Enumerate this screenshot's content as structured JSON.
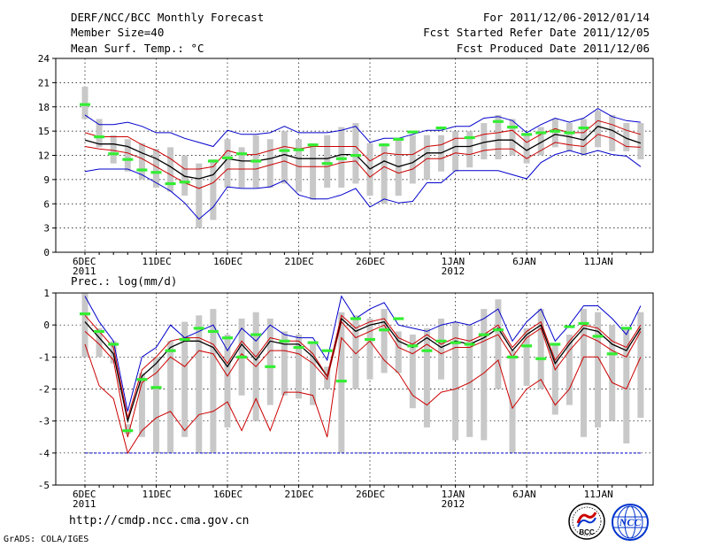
{
  "header": {
    "title": "DERF/NCC/BCC Monthly Forecast",
    "member_size": "Member Size=40",
    "variable": "Mean Surf. Temp.: °C",
    "period": "For 2011/12/06-2012/01/14",
    "fcst_started": "Fcst Started Refer Date 2011/12/05",
    "fcst_produced": "Fcst Produced Date 2011/12/06"
  },
  "footer": {
    "url": "http://cmdp.ncc.cma.gov.cn",
    "credit": "GrADS: COLA/IGES",
    "logo_left_text": "BCC",
    "logo_right_text": "NCC"
  },
  "colors": {
    "envelope": "#0000cc",
    "inner_band": "#cc0000",
    "mean": "#000000",
    "box": "#c8c8c8",
    "obs": "#33ee33",
    "floor": "#0000cc"
  },
  "chart_data": [
    {
      "type": "line",
      "title": "Mean Surf. Temp.: °C",
      "ylim": [
        0,
        24
      ],
      "yticks": [
        0,
        3,
        6,
        9,
        12,
        15,
        18,
        21,
        24
      ],
      "xticks": [
        {
          "day": 1,
          "label": "6DEC",
          "sub": "2011"
        },
        {
          "day": 6,
          "label": "11DEC"
        },
        {
          "day": 11,
          "label": "16DEC"
        },
        {
          "day": 16,
          "label": "21DEC"
        },
        {
          "day": 21,
          "label": "26DEC"
        },
        {
          "day": 27,
          "label": "1JAN",
          "sub": "2012"
        },
        {
          "day": 32,
          "label": "6JAN"
        },
        {
          "day": 37,
          "label": "11JAN"
        }
      ],
      "x": [
        1,
        2,
        3,
        4,
        5,
        6,
        7,
        8,
        9,
        10,
        11,
        12,
        13,
        14,
        15,
        16,
        17,
        18,
        19,
        20,
        21,
        22,
        23,
        24,
        25,
        26,
        27,
        28,
        29,
        30,
        31,
        32,
        33,
        34,
        35,
        36,
        37,
        38,
        39,
        40
      ],
      "series": [
        {
          "name": "max",
          "color": "#0000cc",
          "values": [
            10.0,
            10.3,
            10.3,
            10.3,
            9.6,
            8.6,
            7.6,
            6.1,
            4.1,
            5.6,
            8.1,
            7.9,
            7.9,
            8.1,
            8.9,
            7.1,
            6.6,
            6.6,
            7.1,
            7.9,
            5.6,
            6.6,
            6.1,
            6.3,
            8.6,
            8.6,
            10.1,
            10.1,
            10.1,
            10.1,
            9.6,
            9.1,
            11.1,
            12.1,
            12.6,
            12.1,
            12.6,
            12.1,
            11.9,
            10.6
          ]
        },
        {
          "name": "p_low",
          "color": "#cc0000",
          "values": [
            13.1,
            12.8,
            12.6,
            12.3,
            11.6,
            10.6,
            9.6,
            8.6,
            7.9,
            8.6,
            10.3,
            10.3,
            10.3,
            10.8,
            11.3,
            10.6,
            10.6,
            10.6,
            11.1,
            11.3,
            9.3,
            10.6,
            9.8,
            10.3,
            11.6,
            11.6,
            12.3,
            12.1,
            12.6,
            12.8,
            12.8,
            11.6,
            12.6,
            13.6,
            13.3,
            13.1,
            14.6,
            14.1,
            13.1,
            13.0
          ]
        },
        {
          "name": "mean",
          "color": "#000000",
          "values": [
            13.9,
            13.4,
            13.4,
            13.1,
            12.3,
            11.6,
            10.6,
            9.4,
            9.1,
            9.6,
            11.6,
            11.3,
            11.3,
            11.6,
            12.1,
            11.6,
            11.6,
            11.6,
            12.1,
            12.1,
            10.3,
            11.3,
            10.6,
            11.1,
            12.3,
            12.3,
            13.1,
            13.1,
            13.6,
            13.9,
            13.9,
            12.6,
            13.6,
            14.6,
            14.3,
            13.9,
            15.6,
            15.1,
            14.1,
            13.5
          ]
        },
        {
          "name": "p_high",
          "color": "#cc0000",
          "values": [
            14.8,
            14.3,
            14.3,
            14.3,
            13.3,
            12.6,
            11.6,
            10.3,
            10.3,
            10.6,
            12.6,
            12.1,
            12.1,
            12.6,
            13.1,
            12.8,
            13.1,
            13.1,
            13.1,
            13.1,
            11.3,
            12.3,
            12.1,
            12.1,
            13.1,
            13.3,
            14.1,
            14.1,
            14.6,
            14.8,
            15.1,
            13.6,
            14.6,
            15.3,
            14.8,
            14.8,
            16.3,
            15.8,
            15.1,
            14.6
          ]
        },
        {
          "name": "min",
          "color": "#0000cc",
          "values": [
            17.0,
            15.8,
            15.8,
            16.1,
            15.6,
            14.8,
            14.8,
            14.1,
            13.6,
            13.1,
            15.1,
            14.6,
            14.6,
            14.8,
            15.6,
            14.8,
            14.8,
            14.8,
            15.1,
            15.6,
            13.6,
            14.1,
            14.1,
            14.6,
            15.1,
            15.1,
            15.6,
            15.6,
            16.6,
            16.8,
            16.3,
            14.8,
            15.8,
            16.6,
            16.1,
            16.6,
            17.8,
            16.8,
            16.3,
            16.1
          ]
        }
      ],
      "boxes": [
        [
          16.5,
          20.5
        ],
        [
          13,
          16.5
        ],
        [
          11,
          14.5
        ],
        [
          10,
          14
        ],
        [
          9,
          13.5
        ],
        [
          8,
          12.8
        ],
        [
          7.5,
          13
        ],
        [
          7,
          12
        ],
        [
          3,
          11
        ],
        [
          4,
          11.5
        ],
        [
          8,
          14
        ],
        [
          8,
          13
        ],
        [
          8,
          14.5
        ],
        [
          8,
          14
        ],
        [
          8.5,
          15
        ],
        [
          7.5,
          14
        ],
        [
          6.5,
          13.5
        ],
        [
          8,
          14.5
        ],
        [
          8,
          15.5
        ],
        [
          8.5,
          16
        ],
        [
          7,
          13.5
        ],
        [
          6,
          13.5
        ],
        [
          7,
          14
        ],
        [
          8.5,
          14.5
        ],
        [
          9,
          14.5
        ],
        [
          10,
          14.5
        ],
        [
          10,
          15
        ],
        [
          10.5,
          15
        ],
        [
          11.5,
          16
        ],
        [
          11.5,
          17
        ],
        [
          12,
          16.5
        ],
        [
          11,
          14.5
        ],
        [
          12,
          15.5
        ],
        [
          13,
          16.5
        ],
        [
          12.5,
          16
        ],
        [
          12,
          16.5
        ],
        [
          13,
          17.5
        ],
        [
          12.5,
          17
        ],
        [
          12.5,
          16
        ],
        [
          11.5,
          16
        ]
      ],
      "obs": [
        18.3,
        14.3,
        12.2,
        11.5,
        10.2,
        9.9,
        8.5,
        8.7,
        null,
        11.3,
        11.7,
        12.2,
        11.3,
        null,
        12.6,
        12.7,
        13.3,
        11.0,
        11.6,
        12.0,
        null,
        13.3,
        14.0,
        14.9,
        null,
        15.4,
        null,
        14.2,
        null,
        16.2,
        15.5,
        14.6,
        14.8,
        15.0,
        14.8,
        15.4,
        null,
        null,
        null,
        null
      ]
    },
    {
      "type": "line",
      "title": "Prec.: log(mm/d)",
      "ylim": [
        -5,
        1
      ],
      "yticks": [
        -5,
        -4,
        -3,
        -2,
        -1,
        0,
        1
      ],
      "floor": -4,
      "xticks": [
        {
          "day": 1,
          "label": "6DEC",
          "sub": "2011"
        },
        {
          "day": 6,
          "label": "11DEC"
        },
        {
          "day": 11,
          "label": "16DEC"
        },
        {
          "day": 16,
          "label": "21DEC"
        },
        {
          "day": 21,
          "label": "26DEC"
        },
        {
          "day": 27,
          "label": "1JAN",
          "sub": "2012"
        },
        {
          "day": 32,
          "label": "6JAN"
        },
        {
          "day": 37,
          "label": "11JAN"
        }
      ],
      "x": [
        1,
        2,
        3,
        4,
        5,
        6,
        7,
        8,
        9,
        10,
        11,
        12,
        13,
        14,
        15,
        16,
        17,
        18,
        19,
        20,
        21,
        22,
        23,
        24,
        25,
        26,
        27,
        28,
        29,
        30,
        31,
        32,
        33,
        34,
        35,
        36,
        37,
        38,
        39,
        40
      ],
      "series": [
        {
          "name": "min",
          "color": "#cc0000",
          "values": [
            -0.6,
            -1.9,
            -2.3,
            -4.0,
            -3.3,
            -2.9,
            -2.7,
            -3.3,
            -2.8,
            -2.7,
            -2.4,
            -3.3,
            -2.3,
            -3.3,
            -2.1,
            -2.1,
            -2.2,
            -3.5,
            -0.4,
            -0.9,
            -0.5,
            -1.1,
            -1.5,
            -2.2,
            -2.5,
            -2.1,
            -2.0,
            -1.8,
            -1.5,
            -1.1,
            -2.6,
            -2.0,
            -1.7,
            -2.5,
            -2.0,
            -1.0,
            -1.0,
            -1.8,
            -2.0,
            -1.0
          ]
        },
        {
          "name": "p_low",
          "color": "#cc0000",
          "values": [
            -0.2,
            -0.6,
            -1.1,
            -3.5,
            -1.8,
            -1.5,
            -1.0,
            -1.3,
            -0.8,
            -0.9,
            -1.6,
            -0.9,
            -1.3,
            -0.8,
            -0.8,
            -0.9,
            -1.2,
            -1.7,
            0.1,
            -0.4,
            -0.2,
            0.0,
            -0.7,
            -0.9,
            -0.6,
            -0.9,
            -0.7,
            -0.7,
            -0.5,
            -0.3,
            -1.0,
            -0.4,
            -0.1,
            -1.4,
            -0.8,
            -0.3,
            -0.5,
            -0.8,
            -1.0,
            -0.2
          ]
        },
        {
          "name": "mean",
          "color": "#000000",
          "values": [
            0.1,
            -0.4,
            -0.9,
            -3.0,
            -1.6,
            -1.2,
            -0.7,
            -0.5,
            -0.5,
            -0.7,
            -1.3,
            -0.6,
            -1.1,
            -0.5,
            -0.6,
            -0.6,
            -1.0,
            -1.6,
            0.2,
            -0.2,
            0.0,
            0.1,
            -0.5,
            -0.7,
            -0.4,
            -0.7,
            -0.5,
            -0.6,
            -0.4,
            -0.1,
            -0.8,
            -0.3,
            0.0,
            -1.2,
            -0.6,
            -0.1,
            -0.2,
            -0.6,
            -0.8,
            -0.1
          ]
        },
        {
          "name": "p_high",
          "color": "#cc0000",
          "values": [
            0.3,
            -0.2,
            -0.7,
            -2.9,
            -1.4,
            -1.0,
            -0.5,
            -0.4,
            -0.4,
            -0.6,
            -1.2,
            -0.5,
            -1.0,
            -0.4,
            -0.5,
            -0.5,
            -0.9,
            -1.6,
            0.3,
            -0.1,
            0.1,
            0.2,
            -0.4,
            -0.6,
            -0.3,
            -0.6,
            -0.4,
            -0.5,
            -0.3,
            0.0,
            -0.7,
            -0.2,
            0.1,
            -1.1,
            -0.5,
            0.0,
            -0.1,
            -0.5,
            -0.7,
            0.0
          ]
        },
        {
          "name": "max",
          "color": "#0000cc",
          "values": [
            0.9,
            0.1,
            -0.5,
            -2.7,
            -1.0,
            -0.7,
            0.0,
            -0.4,
            -0.2,
            0.0,
            -0.8,
            -0.1,
            -0.5,
            0.0,
            -0.3,
            -0.4,
            -0.4,
            -1.1,
            0.9,
            0.2,
            0.5,
            0.7,
            0.0,
            -0.1,
            -0.2,
            0.0,
            0.1,
            0.0,
            0.2,
            0.5,
            -0.5,
            0.1,
            0.5,
            -0.5,
            0.0,
            0.6,
            0.6,
            0.2,
            -0.3,
            0.6
          ]
        }
      ],
      "boxes": [
        [
          -1.0,
          1.0
        ],
        [
          -1.0,
          -0.1
        ],
        [
          -1.2,
          -0.5
        ],
        [
          -3.4,
          -3.1
        ],
        [
          -3.5,
          -1.5
        ],
        [
          -4,
          -1.0
        ],
        [
          -4,
          -0.5
        ],
        [
          -3.5,
          0.1
        ],
        [
          -4,
          0.3
        ],
        [
          -4,
          0.5
        ],
        [
          -3.2,
          -0.3
        ],
        [
          -2.2,
          0.2
        ],
        [
          -3,
          0.4
        ],
        [
          -2.5,
          0.2
        ],
        [
          -2.2,
          -0.2
        ],
        [
          -2.3,
          -0.3
        ],
        [
          -2.5,
          -0.6
        ],
        [
          -2,
          -1.3
        ],
        [
          -4,
          0.4
        ],
        [
          -2,
          0.3
        ],
        [
          -1.7,
          0.2
        ],
        [
          -1.5,
          0.5
        ],
        [
          -1.5,
          -0.2
        ],
        [
          -2.6,
          -0.3
        ],
        [
          -3.2,
          -0.1
        ],
        [
          -1.7,
          0.2
        ],
        [
          -3.6,
          0.1
        ],
        [
          -3.5,
          0.0
        ],
        [
          -3.6,
          0.5
        ],
        [
          -2,
          0.8
        ],
        [
          -4,
          -0.8
        ],
        [
          -1.9,
          -0.1
        ],
        [
          -2,
          0.5
        ],
        [
          -2.8,
          -0.6
        ],
        [
          -2.5,
          -0.3
        ],
        [
          -3.5,
          0.5
        ],
        [
          -3.2,
          0.4
        ],
        [
          -3,
          0.0
        ],
        [
          -3.7,
          -0.1
        ],
        [
          -2.9,
          0.4
        ]
      ],
      "obs": [
        0.35,
        -0.2,
        -0.6,
        -3.3,
        -1.7,
        -1.95,
        -0.8,
        -0.45,
        -0.1,
        -0.2,
        -0.4,
        -1.0,
        -0.3,
        -1.3,
        -0.5,
        -0.7,
        -0.55,
        -0.8,
        -1.75,
        0.2,
        -0.45,
        -0.15,
        0.2,
        -0.65,
        -0.8,
        -0.5,
        -0.55,
        -0.6,
        -0.3,
        -0.15,
        -1.0,
        -0.65,
        -1.05,
        -0.6,
        -0.05,
        0.05,
        -0.35,
        -0.9,
        -0.1,
        null
      ]
    }
  ]
}
